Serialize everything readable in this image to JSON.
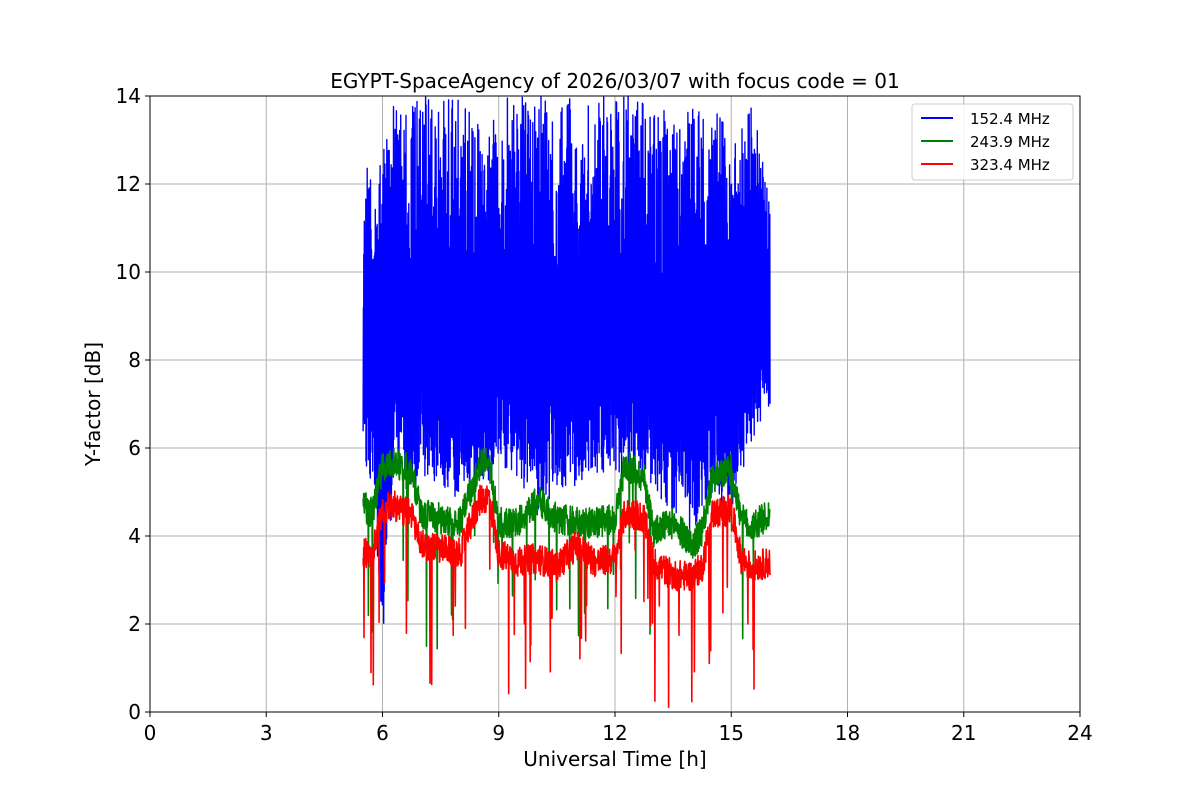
{
  "chart_data": {
    "type": "line",
    "title": "EGYPT-SpaceAgency of 2026/03/07 with focus code = 01",
    "xlabel": "Universal Time [h]",
    "ylabel": "Y-factor [dB]",
    "xlim": [
      0,
      24
    ],
    "ylim": [
      0,
      14
    ],
    "xticks": [
      0,
      3,
      6,
      9,
      12,
      15,
      18,
      21,
      24
    ],
    "yticks": [
      0,
      2,
      4,
      6,
      8,
      10,
      12,
      14
    ],
    "grid": true,
    "legend_position": "top-right",
    "series": [
      {
        "name": "152.4 MHz",
        "color": "#0000ff",
        "x": [
          5.5,
          5.6,
          5.8,
          6.0,
          6.3,
          6.6,
          7.0,
          7.5,
          8.0,
          8.5,
          9.0,
          9.5,
          10.0,
          10.5,
          11.0,
          11.5,
          12.0,
          12.5,
          13.0,
          13.5,
          14.0,
          14.5,
          15.0,
          15.5,
          16.0
        ],
        "low": [
          6.3,
          5.4,
          4.6,
          1.6,
          5.5,
          5.0,
          5.3,
          5.0,
          4.8,
          4.9,
          5.5,
          5.3,
          4.6,
          5.0,
          5.1,
          5.4,
          5.5,
          5.2,
          4.9,
          4.6,
          4.0,
          4.9,
          4.5,
          6.1,
          6.9
        ],
        "high": [
          10.8,
          12.8,
          11.6,
          13.3,
          14.0,
          13.7,
          14.0,
          14.0,
          14.0,
          13.5,
          14.0,
          14.0,
          14.0,
          14.0,
          14.0,
          14.0,
          14.0,
          14.0,
          14.0,
          13.8,
          14.0,
          14.0,
          13.1,
          14.0,
          11.8
        ]
      },
      {
        "name": "243.9 MHz",
        "color": "#008000",
        "x": [
          5.5,
          5.75,
          6.0,
          6.25,
          6.5,
          6.75,
          7.0,
          7.5,
          8.0,
          8.5,
          8.75,
          9.0,
          9.5,
          10.0,
          10.5,
          11.0,
          11.5,
          12.0,
          12.25,
          12.5,
          12.75,
          13.0,
          13.5,
          14.0,
          14.25,
          14.5,
          15.0,
          15.25,
          15.5,
          16.0
        ],
        "values": [
          4.7,
          4.5,
          5.6,
          5.7,
          5.6,
          5.5,
          4.5,
          4.4,
          4.3,
          5.6,
          5.7,
          4.3,
          4.3,
          4.8,
          4.4,
          4.3,
          4.3,
          4.4,
          5.6,
          5.5,
          5.3,
          4.1,
          4.3,
          3.8,
          4.1,
          5.3,
          5.5,
          4.4,
          4.2,
          4.5
        ]
      },
      {
        "name": "323.4 MHz",
        "color": "#ff0000",
        "x": [
          5.5,
          5.75,
          6.0,
          6.25,
          6.5,
          6.75,
          7.0,
          7.5,
          8.0,
          8.5,
          8.75,
          9.0,
          9.5,
          10.0,
          10.5,
          11.0,
          11.5,
          12.0,
          12.25,
          12.5,
          12.75,
          13.0,
          13.5,
          14.0,
          14.25,
          14.5,
          15.0,
          15.25,
          15.5,
          16.0
        ],
        "values": [
          3.6,
          3.6,
          4.6,
          4.7,
          4.6,
          4.5,
          3.8,
          3.7,
          3.6,
          4.8,
          4.9,
          3.6,
          3.4,
          3.5,
          3.3,
          3.8,
          3.4,
          3.5,
          4.5,
          4.5,
          4.4,
          3.4,
          3.1,
          3.1,
          3.3,
          4.5,
          4.6,
          3.5,
          3.3,
          3.4
        ]
      }
    ]
  }
}
